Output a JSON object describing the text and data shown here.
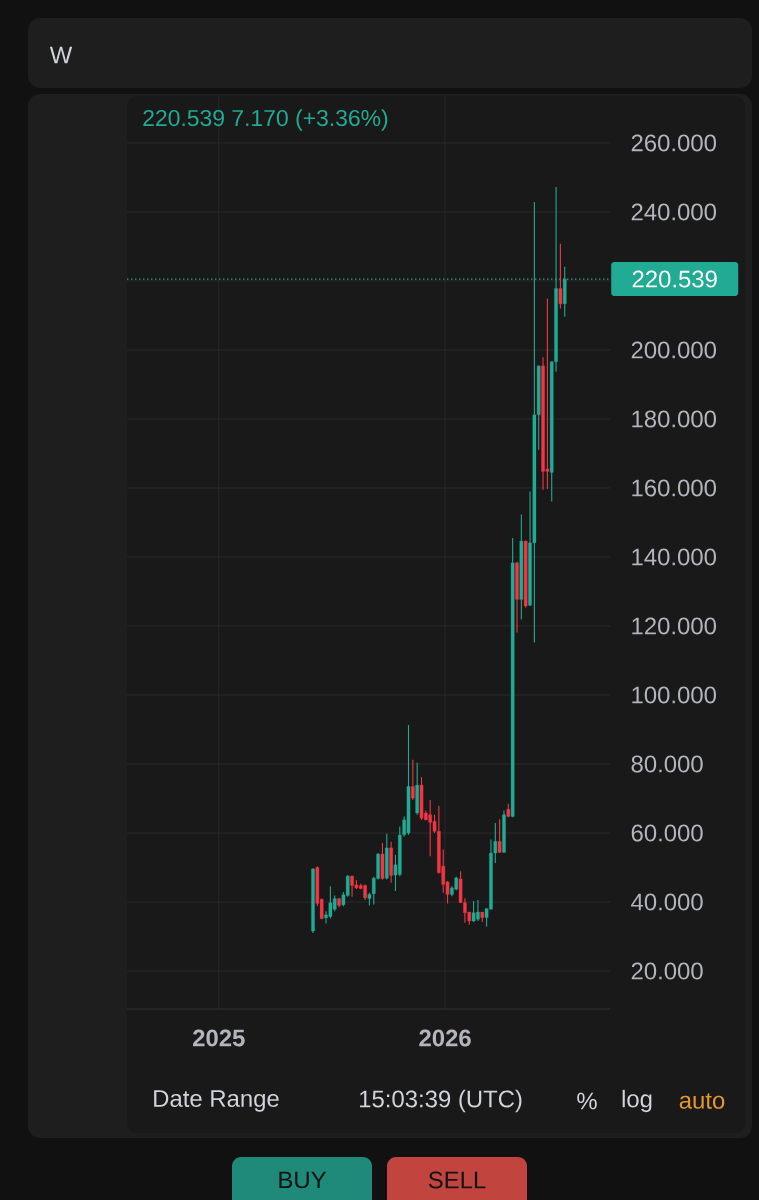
{
  "chart_data": {
    "type": "candlestick",
    "x": [
      "2025-06-02",
      "2025-06-09",
      "2025-06-16",
      "2025-06-23",
      "2025-06-30",
      "2025-07-07",
      "2025-07-14",
      "2025-07-21",
      "2025-07-28",
      "2025-08-04",
      "2025-08-11",
      "2025-08-18",
      "2025-08-25",
      "2025-09-01",
      "2025-09-08",
      "2025-09-15",
      "2025-09-22",
      "2025-09-29",
      "2025-10-06",
      "2025-10-13",
      "2025-10-20",
      "2025-10-27",
      "2025-11-03",
      "2025-11-10",
      "2025-11-17",
      "2025-11-24",
      "2025-12-01",
      "2025-12-08",
      "2025-12-15",
      "2025-12-22",
      "2025-12-29",
      "2026-01-05",
      "2026-01-12",
      "2026-01-19",
      "2026-01-26",
      "2026-02-02",
      "2026-02-09",
      "2026-02-16",
      "2026-02-23",
      "2026-03-02",
      "2026-03-09",
      "2026-03-16",
      "2026-03-23",
      "2026-03-30",
      "2026-04-06",
      "2026-04-13",
      "2026-04-20",
      "2026-04-27",
      "2026-05-04",
      "2026-05-11",
      "2026-05-18",
      "2026-05-25",
      "2026-06-01",
      "2026-06-08",
      "2026-06-15",
      "2026-06-22",
      "2026-06-29",
      "2026-07-06",
      "2026-07-13"
    ],
    "ohlc": [
      [
        31.6,
        49.8,
        31.0,
        49.6
      ],
      [
        50.0,
        50.4,
        38.8,
        39.6
      ],
      [
        40.8,
        41.0,
        35.0,
        35.2
      ],
      [
        35.4,
        37.3,
        33.8,
        36.3
      ],
      [
        35.8,
        44.6,
        35.2,
        39.8
      ],
      [
        37.9,
        41.9,
        37.3,
        41.0
      ],
      [
        41.0,
        41.2,
        38.5,
        39.0
      ],
      [
        39.2,
        42.9,
        38.8,
        42.1
      ],
      [
        41.9,
        47.8,
        41.5,
        47.5
      ],
      [
        47.5,
        47.7,
        41.5,
        44.8
      ],
      [
        45.0,
        46.3,
        43.8,
        44.1
      ],
      [
        44.8,
        45.3,
        43.7,
        43.9
      ],
      [
        44.8,
        45.1,
        40.6,
        41.2
      ],
      [
        41.0,
        42.7,
        39.0,
        42.2
      ],
      [
        42.4,
        47.3,
        39.3,
        46.9
      ],
      [
        46.8,
        54.2,
        46.5,
        53.9
      ],
      [
        53.9,
        57.1,
        46.5,
        46.8
      ],
      [
        46.9,
        59.8,
        46.5,
        55.7
      ],
      [
        55.7,
        57.5,
        45.6,
        47.7
      ],
      [
        47.8,
        53.7,
        43.2,
        50.8
      ],
      [
        48.0,
        61.9,
        47.5,
        59.4
      ],
      [
        59.5,
        64.8,
        59.0,
        63.8
      ],
      [
        60.0,
        91.3,
        59.5,
        73.5
      ],
      [
        73.5,
        81.2,
        69.6,
        70.1
      ],
      [
        65.8,
        80.4,
        65.3,
        73.9
      ],
      [
        73.9,
        76.2,
        63.8,
        64.3
      ],
      [
        65.8,
        66.5,
        63.7,
        63.8
      ],
      [
        65.3,
        69.6,
        53.3,
        63.1
      ],
      [
        63.4,
        65.3,
        60.0,
        60.5
      ],
      [
        60.5,
        67.9,
        48.3,
        48.5
      ],
      [
        50.4,
        55.2,
        42.7,
        45.1
      ],
      [
        45.8,
        46.1,
        39.6,
        42.2
      ],
      [
        42.2,
        44.6,
        41.7,
        44.1
      ],
      [
        43.7,
        47.3,
        43.4,
        47.0
      ],
      [
        46.7,
        48.9,
        39.8,
        39.8
      ],
      [
        39.8,
        41.1,
        34.0,
        36.9
      ],
      [
        37.1,
        37.1,
        33.4,
        34.5
      ],
      [
        34.5,
        40.3,
        34.2,
        36.9
      ],
      [
        35.0,
        40.6,
        34.5,
        37.1
      ],
      [
        37.1,
        37.1,
        34.2,
        35.5
      ],
      [
        35.5,
        38.1,
        32.9,
        38.1
      ],
      [
        37.9,
        58.1,
        37.9,
        54.2
      ],
      [
        54.2,
        62.9,
        51.3,
        57.6
      ],
      [
        57.6,
        64.0,
        54.2,
        54.4
      ],
      [
        54.4,
        66.5,
        54.2,
        65.3
      ],
      [
        66.9,
        68.5,
        64.6,
        64.8
      ],
      [
        64.8,
        145.5,
        64.6,
        138.3
      ],
      [
        138.3,
        138.6,
        118.1,
        127.7
      ],
      [
        127.7,
        152.3,
        121.9,
        144.6
      ],
      [
        144.6,
        144.8,
        125.3,
        125.8
      ],
      [
        126.0,
        159.0,
        125.8,
        144.1
      ],
      [
        144.1,
        242.9,
        115.2,
        181.2
      ],
      [
        181.2,
        195.4,
        171.1,
        195.4
      ],
      [
        195.4,
        197.9,
        159.5,
        164.8
      ],
      [
        165.5,
        214.9,
        159.7,
        164.8
      ],
      [
        164.5,
        196.6,
        156.1,
        196.6
      ],
      [
        196.6,
        247.2,
        193.7,
        217.8
      ],
      [
        217.8,
        230.8,
        212.0,
        213.369
      ],
      [
        213.369,
        224.1,
        209.6,
        220.539
      ]
    ],
    "colors": [
      "#22ab94",
      "#f23645",
      "#f23645",
      "#22ab94",
      "#22ab94",
      "#22ab94",
      "#f23645",
      "#22ab94",
      "#22ab94",
      "#f23645",
      "#f23645",
      "#f23645",
      "#f23645",
      "#22ab94",
      "#22ab94",
      "#22ab94",
      "#f23645",
      "#22ab94",
      "#f23645",
      "#22ab94",
      "#22ab94",
      "#22ab94",
      "#22ab94",
      "#f23645",
      "#22ab94",
      "#f23645",
      "#f23645",
      "#f23645",
      "#f23645",
      "#f23645",
      "#f23645",
      "#f23645",
      "#22ab94",
      "#22ab94",
      "#f23645",
      "#f23645",
      "#f23645",
      "#22ab94",
      "#22ab94",
      "#f23645",
      "#22ab94",
      "#22ab94",
      "#22ab94",
      "#f23645",
      "#22ab94",
      "#f23645",
      "#22ab94",
      "#f23645",
      "#22ab94",
      "#f23645",
      "#22ab94",
      "#22ab94",
      "#22ab94",
      "#f23645",
      "#f23645",
      "#22ab94",
      "#22ab94",
      "#f23645",
      "#22ab94"
    ],
    "xlim": [
      "2024-08-06",
      "2026-09-24"
    ],
    "xticks": [
      {
        "value": "2025-01-01",
        "label": "2025"
      },
      {
        "value": "2026-01-01",
        "label": "2026"
      }
    ],
    "ylim": [
      9.0,
      273.6
    ],
    "yticks": [
      {
        "value": 20,
        "label": "20.000"
      },
      {
        "value": 40,
        "label": "40.000"
      },
      {
        "value": 60,
        "label": "60.000"
      },
      {
        "value": 80,
        "label": "80.000"
      },
      {
        "value": 100,
        "label": "100.000"
      },
      {
        "value": 120,
        "label": "120.000"
      },
      {
        "value": 140,
        "label": "140.000"
      },
      {
        "value": 160,
        "label": "160.000"
      },
      {
        "value": 180,
        "label": "180.000"
      },
      {
        "value": 200,
        "label": "200.000"
      },
      {
        "value": 220,
        "label": null
      },
      {
        "value": 240,
        "label": "240.000"
      },
      {
        "value": 260,
        "label": "260.000"
      }
    ],
    "grid": true,
    "ref_lines": [
      {
        "axis": "y",
        "value": 220.539,
        "label": "220.539",
        "color": "#22ab94",
        "line_style": "dotted"
      }
    ],
    "annotations": [
      "W",
      "220.539 7.170 (+3.36%)",
      "Date Range",
      "15:03:39 (UTC)",
      "%",
      "log",
      "auto",
      "BUY",
      "SELL"
    ]
  }
}
